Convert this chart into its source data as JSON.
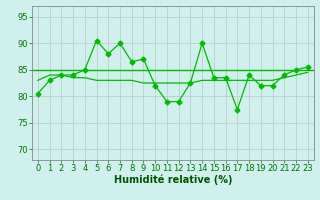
{
  "xlabel": "Humidité relative (%)",
  "ylabel": "",
  "background_color": "#cff0ec",
  "grid_color": "#bbbbbb",
  "line_color": "#00bb00",
  "xlim": [
    -0.5,
    23.5
  ],
  "ylim": [
    68,
    97
  ],
  "yticks": [
    70,
    75,
    80,
    85,
    90,
    95
  ],
  "xticks": [
    0,
    1,
    2,
    3,
    4,
    5,
    6,
    7,
    8,
    9,
    10,
    11,
    12,
    13,
    14,
    15,
    16,
    17,
    18,
    19,
    20,
    21,
    22,
    23
  ],
  "series1": [
    80.5,
    83,
    84,
    84,
    85,
    90.5,
    88,
    90,
    86.5,
    87,
    82,
    79,
    79,
    82.5,
    90,
    83.5,
    83.5,
    77.5,
    84,
    82,
    82,
    84,
    85,
    85.5
  ],
  "series2": [
    83,
    84,
    84,
    83.5,
    83.5,
    83,
    83,
    83,
    83,
    82.5,
    82.5,
    82.5,
    82.5,
    82.5,
    83,
    83,
    83,
    83,
    83,
    83,
    83,
    83.5,
    84,
    84.5
  ],
  "hline_y": 85,
  "xlabel_fontsize": 7,
  "tick_fontsize": 6
}
